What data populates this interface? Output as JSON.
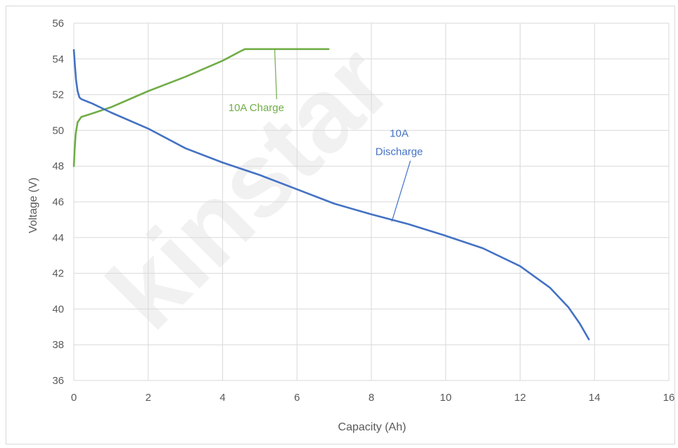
{
  "chart_data": {
    "type": "line",
    "title": "",
    "xlabel": "Capacity (Ah)",
    "ylabel": "Voltage (V)",
    "xlim": [
      0,
      16
    ],
    "ylim": [
      36,
      56
    ],
    "xticks": [
      0,
      2,
      4,
      6,
      8,
      10,
      12,
      14,
      16
    ],
    "yticks": [
      36,
      38,
      40,
      42,
      44,
      46,
      48,
      50,
      52,
      54,
      56
    ],
    "grid": true,
    "legend": "none",
    "series": [
      {
        "name": "10A Charge",
        "color": "#70ad47",
        "x": [
          0.0,
          0.02,
          0.05,
          0.1,
          0.2,
          0.5,
          1.0,
          2.0,
          3.0,
          4.0,
          4.5,
          4.6,
          5.0,
          6.0,
          6.85
        ],
        "y": [
          48.0,
          48.9,
          49.8,
          50.45,
          50.75,
          50.95,
          51.3,
          52.2,
          53.0,
          53.9,
          54.45,
          54.55,
          54.55,
          54.55,
          54.55
        ]
      },
      {
        "name": "10A Discharge",
        "color": "#4472c4",
        "x": [
          0.0,
          0.03,
          0.06,
          0.1,
          0.15,
          0.2,
          0.5,
          1.0,
          2.0,
          3.0,
          4.0,
          5.0,
          6.0,
          7.0,
          8.0,
          9.0,
          10.0,
          11.0,
          12.0,
          12.8,
          13.3,
          13.6,
          13.85
        ],
        "y": [
          54.5,
          53.6,
          52.8,
          52.2,
          51.85,
          51.75,
          51.5,
          51.0,
          50.1,
          49.0,
          48.2,
          47.5,
          46.7,
          45.9,
          45.3,
          44.75,
          44.1,
          43.4,
          42.4,
          41.2,
          40.1,
          39.2,
          38.3
        ]
      }
    ],
    "annotations": [
      {
        "text": "10A Charge",
        "series": 0,
        "pointer_x": 5.4,
        "pointer_y": 54.55,
        "label_x": 5.0,
        "label_y": 51.0,
        "color": "#70ad47"
      },
      {
        "text_lines": [
          "10A",
          "Discharge"
        ],
        "series": 1,
        "pointer_x": 8.55,
        "pointer_y": 44.9,
        "label_x": 9.05,
        "label_y": 48.3,
        "color": "#4472c4"
      }
    ],
    "watermark": "kinstar"
  }
}
